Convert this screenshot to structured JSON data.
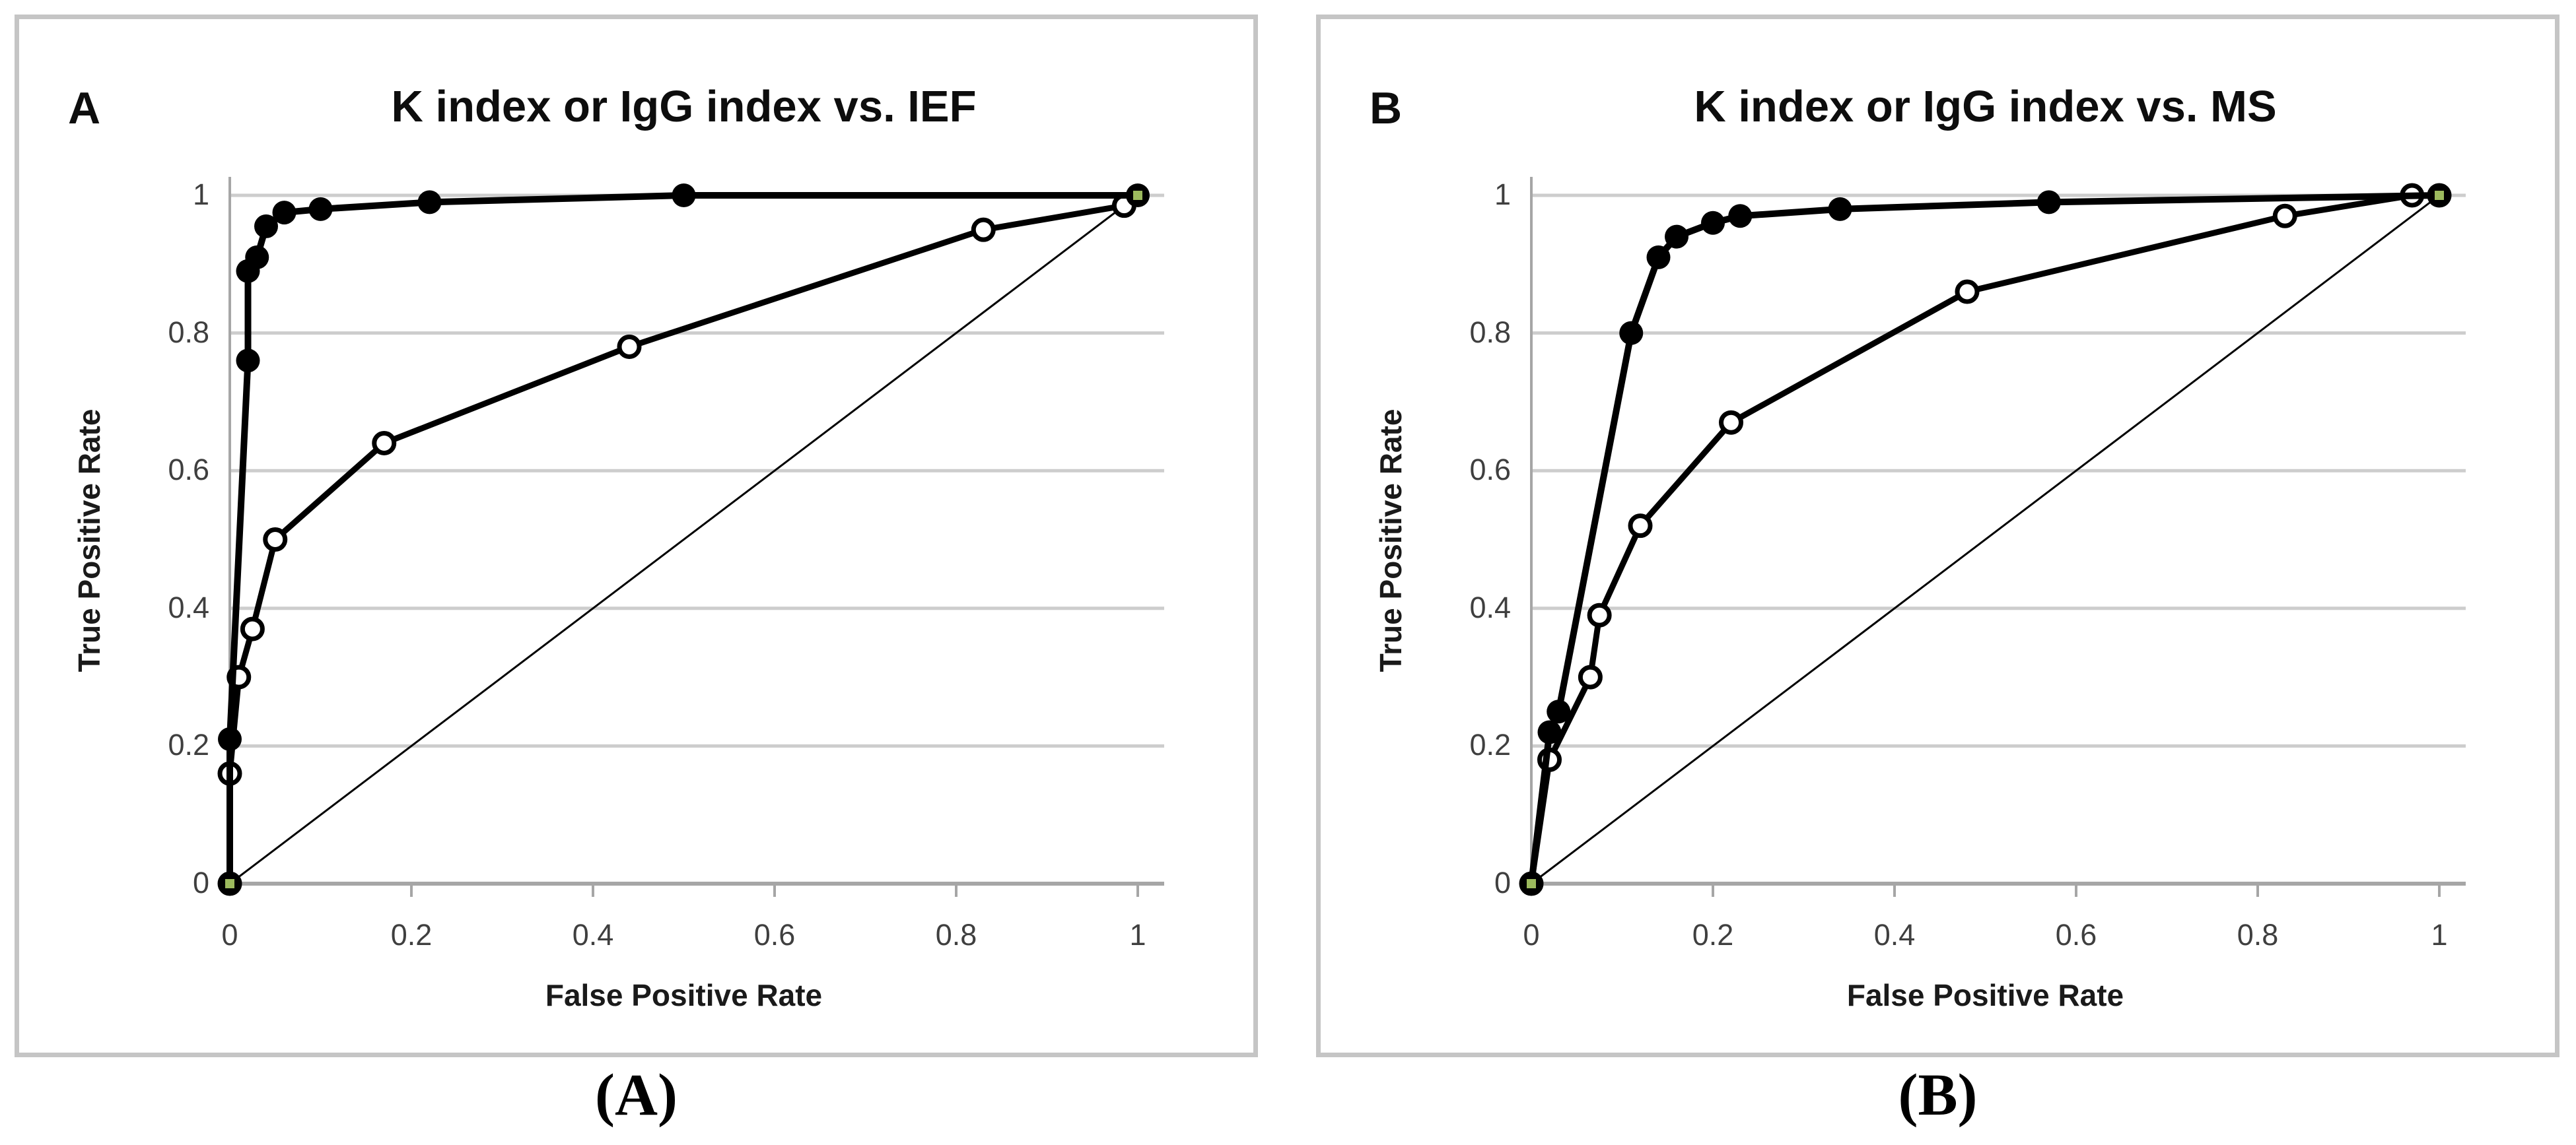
{
  "panels": [
    {
      "letter": "A",
      "title": "K index or IgG index vs. IEF",
      "xlabel": "False Positive Rate",
      "ylabel": "True Positive Rate",
      "caption": "(A)"
    },
    {
      "letter": "B",
      "title": "K index or IgG index vs. MS",
      "xlabel": "False Positive Rate",
      "ylabel": "True Positive Rate",
      "caption": "(B)"
    }
  ],
  "colors": {
    "series_black": "#000000",
    "panel_border_gray": "#c5c5c5",
    "gridline_gray": "#cdcdcd",
    "axis_gray": "#a6a6a6",
    "tick_text_gray": "#3f3f3f",
    "accent_green": "#9cba5d",
    "background": "#ffffff"
  },
  "chart_data": [
    {
      "type": "line",
      "title": "K index or IgG index vs. IEF",
      "xlabel": "False Positive Rate",
      "ylabel": "True Positive Rate",
      "xlim": [
        0,
        1
      ],
      "ylim": [
        0,
        1
      ],
      "x_ticks": [
        0,
        0.2,
        0.4,
        0.6,
        0.8,
        1
      ],
      "y_ticks": [
        0,
        0.2,
        0.4,
        0.6,
        0.8,
        1
      ],
      "grid": "horizontal-only",
      "legend": "none",
      "series": [
        {
          "name": "filled-circle-curve",
          "marker": "filled-circle",
          "points": [
            [
              0,
              0
            ],
            [
              0,
              0.21
            ],
            [
              0.02,
              0.76
            ],
            [
              0.02,
              0.89
            ],
            [
              0.03,
              0.91
            ],
            [
              0.04,
              0.955
            ],
            [
              0.06,
              0.975
            ],
            [
              0.1,
              0.98
            ],
            [
              0.22,
              0.99
            ],
            [
              0.5,
              1.0
            ],
            [
              1.0,
              1.0
            ]
          ]
        },
        {
          "name": "open-circle-curve",
          "marker": "open-circle",
          "points": [
            [
              0,
              0
            ],
            [
              0,
              0.16
            ],
            [
              0.01,
              0.3
            ],
            [
              0.025,
              0.37
            ],
            [
              0.05,
              0.5
            ],
            [
              0.17,
              0.64
            ],
            [
              0.44,
              0.78
            ],
            [
              0.83,
              0.95
            ],
            [
              0.985,
              0.985
            ]
          ]
        },
        {
          "name": "chance-diagonal",
          "marker": "none",
          "points": [
            [
              0,
              0
            ],
            [
              1,
              1
            ]
          ]
        }
      ],
      "accent_points": [
        [
          0,
          0
        ],
        [
          1,
          1
        ]
      ]
    },
    {
      "type": "line",
      "title": "K index or IgG index vs. MS",
      "xlabel": "False Positive Rate",
      "ylabel": "True Positive Rate",
      "xlim": [
        0,
        1
      ],
      "ylim": [
        0,
        1
      ],
      "x_ticks": [
        0,
        0.2,
        0.4,
        0.6,
        0.8,
        1
      ],
      "y_ticks": [
        0,
        0.2,
        0.4,
        0.6,
        0.8,
        1
      ],
      "grid": "horizontal-only",
      "legend": "none",
      "series": [
        {
          "name": "filled-circle-curve",
          "marker": "filled-circle",
          "points": [
            [
              0,
              0
            ],
            [
              0.02,
              0.22
            ],
            [
              0.03,
              0.25
            ],
            [
              0.11,
              0.8
            ],
            [
              0.14,
              0.91
            ],
            [
              0.16,
              0.94
            ],
            [
              0.2,
              0.96
            ],
            [
              0.23,
              0.97
            ],
            [
              0.34,
              0.98
            ],
            [
              0.57,
              0.99
            ],
            [
              1.0,
              1.0
            ]
          ]
        },
        {
          "name": "open-circle-curve",
          "marker": "open-circle",
          "points": [
            [
              0,
              0
            ],
            [
              0.02,
              0.18
            ],
            [
              0.065,
              0.3
            ],
            [
              0.075,
              0.39
            ],
            [
              0.12,
              0.52
            ],
            [
              0.22,
              0.67
            ],
            [
              0.48,
              0.86
            ],
            [
              0.83,
              0.97
            ],
            [
              0.97,
              1.0
            ],
            [
              1.0,
              1.0
            ]
          ]
        },
        {
          "name": "chance-diagonal",
          "marker": "none",
          "points": [
            [
              0,
              0
            ],
            [
              1,
              1
            ]
          ]
        }
      ],
      "accent_points": [
        [
          0,
          0
        ],
        [
          1,
          1
        ]
      ]
    }
  ]
}
